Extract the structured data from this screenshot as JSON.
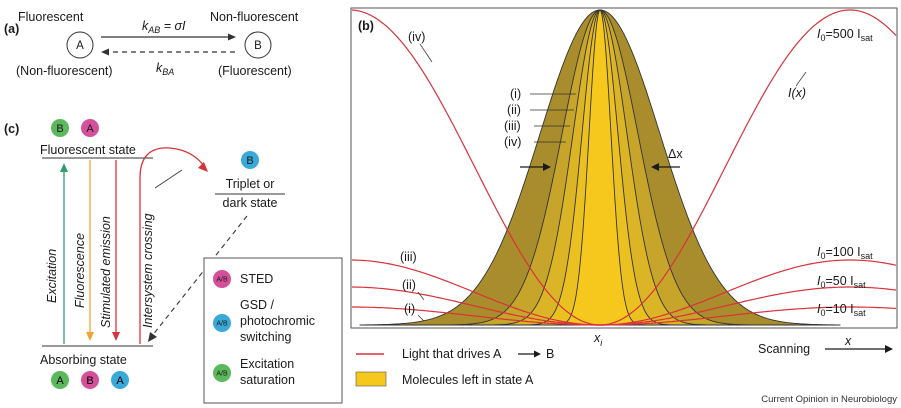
{
  "panel_a": {
    "label": "(a)",
    "left_top": "Fluorescent",
    "right_top": "Non-fluorescent",
    "left_state": "A",
    "right_state": "B",
    "rate_forward": "k",
    "rate_forward_sub": "AB",
    "rate_forward_eq": " = σI",
    "rate_back": "k",
    "rate_back_sub": "BA",
    "left_bottom": "(Non-fluorescent)",
    "right_bottom": "(Fluorescent)"
  },
  "panel_c": {
    "label": "(c)",
    "top_badges": [
      "B",
      "A"
    ],
    "fluorescent_state": "Fluorescent state",
    "triplet_badge": "B",
    "triplet_line1": "Triplet or",
    "triplet_line2": "dark state",
    "excitation": "Excitation",
    "fluorescence": "Fluorescence",
    "stimulated_emission": "Stimulated emission",
    "intersystem_crossing": "Intersystem crossing",
    "absorbing_state": "Absorbing state",
    "bottom_badges": [
      "A",
      "B",
      "A"
    ],
    "legend": [
      {
        "badge": "A/B",
        "line1": "STED",
        "line2": "",
        "line3": "",
        "color": "#d4509a"
      },
      {
        "badge": "A/B",
        "line1": "GSD /",
        "line2": "photochromic",
        "line3": "switching",
        "color": "#3aa9d8"
      },
      {
        "badge": "A/B",
        "line1": "Excitation",
        "line2": "saturation",
        "line3": "",
        "color": "#5cb85c"
      }
    ]
  },
  "panel_b": {
    "label": "(b)",
    "curve_labels": [
      "(i)",
      "(ii)",
      "(iii)",
      "(iv)"
    ],
    "ix_label": "I(x)",
    "intensity_labels": [
      {
        "pre": "I",
        "sub0": "0",
        "mid": "=500 I",
        "sub": "sat"
      },
      {
        "pre": "I",
        "sub0": "0",
        "mid": "=100 I",
        "sub": "sat"
      },
      {
        "pre": "I",
        "sub0": "0",
        "mid": "=50 I",
        "sub": "sat"
      },
      {
        "pre": "I",
        "sub0": "0",
        "mid": "=10 I",
        "sub": "sat"
      }
    ],
    "delta_x": "Δx",
    "xi_label": "x",
    "xi_sub": "i",
    "scanning": "Scanning",
    "x_axis": "x",
    "legend_line": "Light that drives A",
    "legend_line_end": "B",
    "legend_fill": "Molecules left in state A",
    "credit": "Current Opinion in Neurobiology"
  },
  "colors": {
    "red": "#d8323a",
    "olive": "#a98d2c",
    "yellow": "#f6c81e",
    "green_arrow": "#2e9e6e",
    "orange_arrow": "#f0a436",
    "pink": "#d4509a",
    "blue": "#3aa9d8",
    "green": "#5cb85c"
  }
}
